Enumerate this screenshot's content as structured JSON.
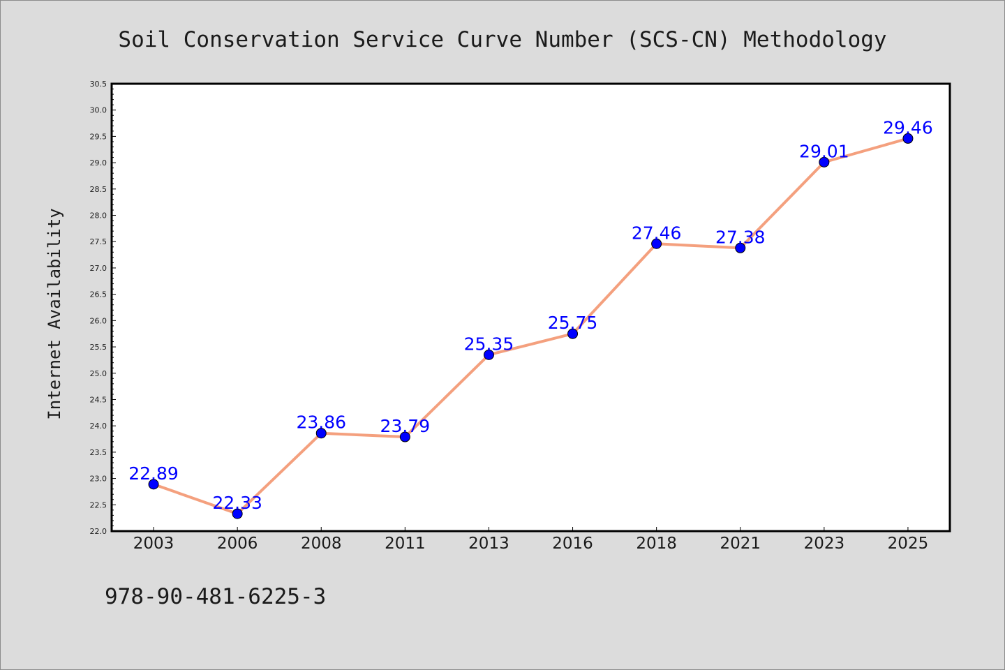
{
  "chart_data": {
    "type": "line",
    "title": "Soil Conservation Service Curve Number (SCS-CN) Methodology",
    "xlabel": "",
    "ylabel": "Internet Availability",
    "categories": [
      "2003",
      "2006",
      "2008",
      "2011",
      "2013",
      "2016",
      "2018",
      "2021",
      "2023",
      "2025"
    ],
    "series": [
      {
        "values": [
          22.89,
          22.33,
          23.86,
          23.79,
          25.35,
          25.75,
          27.46,
          27.38,
          29.01,
          29.46
        ],
        "line_color": "#f4a07e",
        "marker_color": "#0000ff"
      }
    ],
    "data_labels": [
      "22.89",
      "22.33",
      "23.86",
      "23.79",
      "25.35",
      "25.75",
      "27.46",
      "27.38",
      "29.01",
      "29.46"
    ],
    "ylim": [
      22.0,
      30.5
    ],
    "yticks": [
      "22.0",
      "22.5",
      "23.0",
      "23.5",
      "24.0",
      "24.5",
      "25.0",
      "25.5",
      "26.0",
      "26.5",
      "27.0",
      "27.5",
      "28.0",
      "28.5",
      "29.0",
      "29.5",
      "30.0",
      "30.5"
    ],
    "grid": false,
    "label_color": "#0000ff"
  },
  "footer": {
    "text": "978-90-481-6225-3"
  },
  "colors": {
    "background": "#dcdcdc",
    "plot_background": "#ffffff"
  }
}
